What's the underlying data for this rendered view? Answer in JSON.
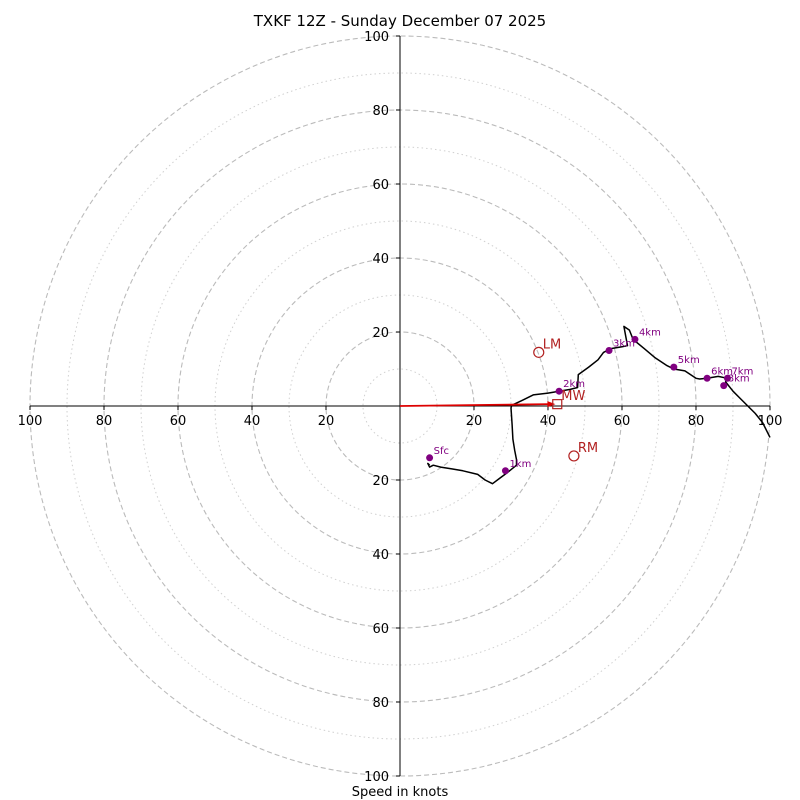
{
  "chart_data": {
    "type": "hodograph",
    "title": "TXKF 12Z - Sunday December 07 2025",
    "xlabel": "Speed in knots",
    "max_speed": 100,
    "ring_major": [
      20,
      40,
      60,
      80,
      100
    ],
    "ring_minor": [
      10,
      30,
      50,
      70,
      90
    ],
    "axis_tick_values": [
      20,
      40,
      60,
      80,
      100
    ],
    "axis_tick_labels": {
      "left": [
        "20",
        "40",
        "60",
        "80",
        "100"
      ],
      "right": [
        "20",
        "40",
        "60",
        "80",
        "100"
      ],
      "top": [
        "20",
        "40",
        "60",
        "80",
        "100"
      ],
      "bottom": [
        "20",
        "40",
        "60",
        "80",
        "100"
      ]
    },
    "colors": {
      "trace": "#000000",
      "height_marker": "#800080",
      "motion": "#b22222",
      "mean_wind_arrow": "#dd0000",
      "ring": "#bbbbbb",
      "axis": "#000000"
    },
    "hodograph_line": [
      [
        8,
        -16
      ],
      [
        7.5,
        -15.5
      ],
      [
        8,
        -16.5
      ],
      [
        9,
        -16
      ],
      [
        11,
        -16.5
      ],
      [
        14,
        -17
      ],
      [
        17,
        -17.5
      ],
      [
        21,
        -18.5
      ],
      [
        23,
        -20
      ],
      [
        25,
        -21
      ],
      [
        27,
        -19.5
      ],
      [
        29,
        -18
      ],
      [
        31.5,
        -16
      ],
      [
        31.5,
        -14.5
      ],
      [
        31,
        -12
      ],
      [
        30.5,
        -9
      ],
      [
        30.3,
        -5
      ],
      [
        30,
        -0.5
      ],
      [
        30.2,
        0.2
      ],
      [
        33,
        1.5
      ],
      [
        36,
        3
      ],
      [
        40,
        3.5
      ],
      [
        43,
        4
      ],
      [
        46,
        4.5
      ],
      [
        48,
        5
      ],
      [
        48.2,
        8.5
      ],
      [
        51,
        10.5
      ],
      [
        53.5,
        12.5
      ],
      [
        55,
        14.5
      ],
      [
        57,
        15.5
      ],
      [
        60,
        16
      ],
      [
        61.5,
        16.3
      ],
      [
        60.5,
        21.5
      ],
      [
        62,
        20.5
      ],
      [
        63,
        18
      ],
      [
        66,
        15.5
      ],
      [
        69,
        13
      ],
      [
        72,
        11
      ],
      [
        74,
        10
      ],
      [
        77,
        9.5
      ],
      [
        80,
        7.5
      ],
      [
        81,
        7.3
      ],
      [
        83,
        7.5
      ],
      [
        86,
        8
      ],
      [
        88.5,
        7.5
      ],
      [
        88,
        6.5
      ],
      [
        90,
        4
      ],
      [
        92,
        2
      ],
      [
        94,
        0
      ],
      [
        96,
        -2
      ],
      [
        98,
        -4.5
      ],
      [
        100,
        -8.5
      ]
    ],
    "height_markers": [
      {
        "label": "Sfc",
        "u": 8,
        "v": -14
      },
      {
        "label": "1km",
        "u": 28.5,
        "v": -17.5
      },
      {
        "label": "2km",
        "u": 43,
        "v": 4
      },
      {
        "label": "3km",
        "u": 56.5,
        "v": 15
      },
      {
        "label": "4km",
        "u": 63.5,
        "v": 18
      },
      {
        "label": "5km",
        "u": 74,
        "v": 10.5
      },
      {
        "label": "6km",
        "u": 83,
        "v": 7.5
      },
      {
        "label": "7km",
        "u": 88.5,
        "v": 7.5
      },
      {
        "label": "8km",
        "u": 87.5,
        "v": 5.5
      }
    ],
    "storm_motion": [
      {
        "label": "LM",
        "u": 37.5,
        "v": 14.5,
        "marker": "circle"
      },
      {
        "label": "RM",
        "u": 47,
        "v": -13.5,
        "marker": "circle"
      },
      {
        "label": "MW",
        "u": 42.5,
        "v": 0.5,
        "marker": "square"
      }
    ],
    "mean_wind_arrow": {
      "from": [
        0,
        0
      ],
      "to": [
        42,
        0.5
      ]
    }
  }
}
